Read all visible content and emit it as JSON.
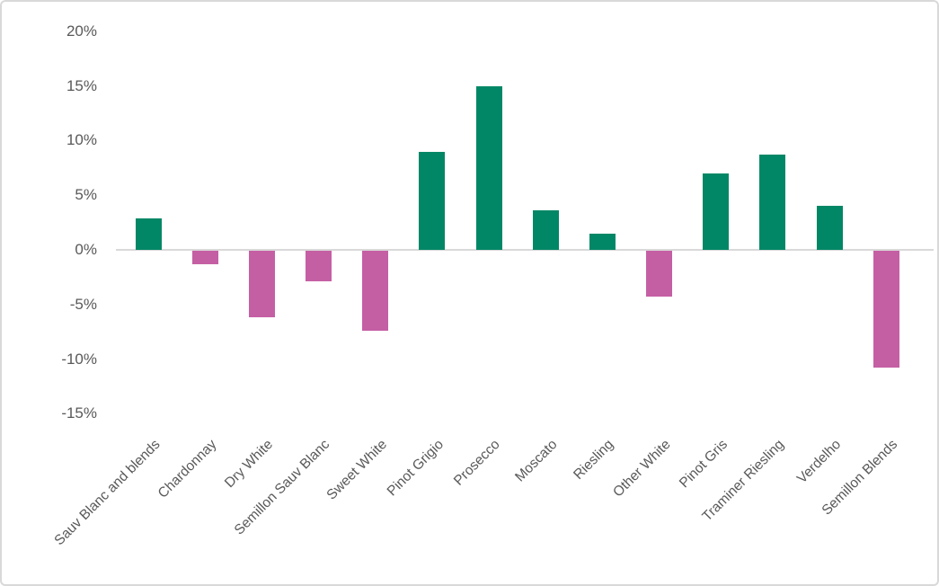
{
  "chart_data": {
    "type": "bar",
    "title": "",
    "xlabel": "",
    "ylabel": "",
    "categories": [
      "Sauv Blanc and blends",
      "Chardonnay",
      "Dry White",
      "Semillon Sauv Blanc",
      "Sweet White",
      "Pinot Grigio",
      "Prosecco",
      "Moscato",
      "Riesling",
      "Other White",
      "Pinot Gris",
      "Traminer Riesling",
      "Verdelho",
      "Semillon Blends"
    ],
    "values": [
      2.9,
      -1.2,
      -6.1,
      -2.8,
      -7.3,
      9.0,
      15.0,
      3.6,
      1.5,
      -4.2,
      7.0,
      8.7,
      4.0,
      -10.7
    ],
    "value_unit": "%",
    "ylim": [
      -15,
      20
    ],
    "ytick_values": [
      20,
      15,
      10,
      5,
      0,
      -5,
      -10,
      -15
    ],
    "ytick_labels": [
      "20%",
      "15%",
      "10%",
      "5%",
      "0%",
      "-5%",
      "-10%",
      "-15%"
    ],
    "grid": false,
    "legend_position": "none",
    "colors": {
      "positive_bar": "#028766",
      "negative_bar": "#c55fa4",
      "axis_line": "#d9d9d9",
      "tick_label": "#595959",
      "frame_border": "#d9d9d9",
      "background": "#ffffff"
    }
  }
}
